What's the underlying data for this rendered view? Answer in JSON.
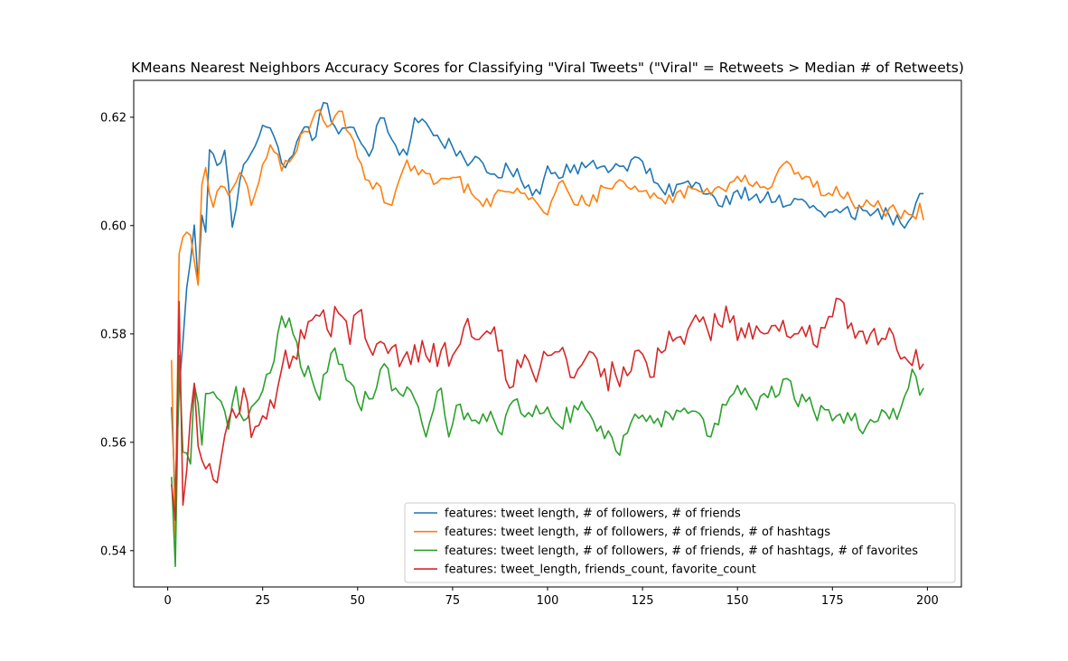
{
  "chart_data": {
    "type": "line",
    "title": "KMeans Nearest Neighbors Accuracy Scores for Classifying \"Viral Tweets\" (\"Viral\" = Retweets > Median # of Retweets)",
    "xlabel": "",
    "ylabel": "",
    "xlim": [
      -8.95,
      208.95
    ],
    "ylim": [
      0.5333,
      0.6268
    ],
    "x_ticks": [
      0,
      25,
      50,
      75,
      100,
      125,
      150,
      175,
      200
    ],
    "y_ticks": [
      0.54,
      0.56,
      0.58,
      0.6,
      0.62
    ],
    "y_tick_labels": [
      "0.54",
      "0.56",
      "0.58",
      "0.60",
      "0.62"
    ],
    "grid": false,
    "legend_position": "lower-right",
    "x_range": [
      1,
      199
    ],
    "series": [
      {
        "name": "features: tweet length, # of followers, # of friends",
        "color": "#1f77b4",
        "anchors": [
          [
            1,
            0.5665
          ],
          [
            2,
            0.5497
          ],
          [
            3,
            0.5698
          ],
          [
            4,
            0.5785
          ],
          [
            5,
            0.5885
          ],
          [
            6,
            0.5935
          ],
          [
            7,
            0.6001
          ],
          [
            8,
            0.5894
          ],
          [
            9,
            0.6019
          ],
          [
            10,
            0.5988
          ],
          [
            11,
            0.614
          ],
          [
            13,
            0.6111
          ],
          [
            15,
            0.6139
          ],
          [
            17,
            0.5997
          ],
          [
            20,
            0.6113
          ],
          [
            25,
            0.6185
          ],
          [
            27,
            0.618
          ],
          [
            30,
            0.6115
          ],
          [
            33,
            0.613
          ],
          [
            36,
            0.6182
          ],
          [
            39,
            0.6164
          ],
          [
            41,
            0.6227
          ],
          [
            44,
            0.6183
          ],
          [
            47,
            0.618
          ],
          [
            50,
            0.6164
          ],
          [
            53,
            0.6128
          ],
          [
            56,
            0.6199
          ],
          [
            60,
            0.6148
          ],
          [
            63,
            0.613
          ],
          [
            65,
            0.6199
          ],
          [
            68,
            0.619
          ],
          [
            70,
            0.6166
          ],
          [
            75,
            0.6145
          ],
          [
            80,
            0.6118
          ],
          [
            85,
            0.6095
          ],
          [
            90,
            0.6102
          ],
          [
            95,
            0.6075
          ],
          [
            98,
            0.6058
          ],
          [
            100,
            0.611
          ],
          [
            103,
            0.6087
          ],
          [
            105,
            0.6113
          ],
          [
            110,
            0.6107
          ],
          [
            115,
            0.611
          ],
          [
            120,
            0.611
          ],
          [
            124,
            0.6125
          ],
          [
            128,
            0.608
          ],
          [
            131,
            0.6057
          ],
          [
            135,
            0.6077
          ],
          [
            138,
            0.607
          ],
          [
            140,
            0.6077
          ],
          [
            143,
            0.606
          ],
          [
            145,
            0.6037
          ],
          [
            150,
            0.6065
          ],
          [
            155,
            0.6058
          ],
          [
            160,
            0.6044
          ],
          [
            163,
            0.6037
          ],
          [
            166,
            0.6048
          ],
          [
            170,
            0.6037
          ],
          [
            173,
            0.6016
          ],
          [
            178,
            0.603
          ],
          [
            180,
            0.6016
          ],
          [
            183,
            0.6028
          ],
          [
            186,
            0.6024
          ],
          [
            190,
            0.6018
          ],
          [
            193,
            0.6004
          ],
          [
            196,
            0.6017
          ],
          [
            198,
            0.6059
          ],
          [
            199,
            0.6059
          ]
        ],
        "noise": 0.0015
      },
      {
        "name": "features: tweet length, # of followers, # of friends, # of hashtags",
        "color": "#ff7f0e",
        "anchors": [
          [
            1,
            0.5752
          ],
          [
            2,
            0.5424
          ],
          [
            3,
            0.5948
          ],
          [
            4,
            0.5979
          ],
          [
            5,
            0.5988
          ],
          [
            6,
            0.5982
          ],
          [
            7,
            0.5934
          ],
          [
            8,
            0.589
          ],
          [
            9,
            0.6076
          ],
          [
            10,
            0.6107
          ],
          [
            12,
            0.6034
          ],
          [
            14,
            0.6073
          ],
          [
            16,
            0.6056
          ],
          [
            18,
            0.608
          ],
          [
            20,
            0.6089
          ],
          [
            22,
            0.6037
          ],
          [
            25,
            0.6113
          ],
          [
            27,
            0.6149
          ],
          [
            30,
            0.6101
          ],
          [
            33,
            0.6127
          ],
          [
            36,
            0.6174
          ],
          [
            39,
            0.6211
          ],
          [
            42,
            0.6182
          ],
          [
            45,
            0.6211
          ],
          [
            48,
            0.6169
          ],
          [
            50,
            0.6125
          ],
          [
            53,
            0.6083
          ],
          [
            56,
            0.6072
          ],
          [
            58,
            0.604
          ],
          [
            60,
            0.6064
          ],
          [
            62,
            0.6104
          ],
          [
            65,
            0.611
          ],
          [
            68,
            0.6096
          ],
          [
            70,
            0.6076
          ],
          [
            73,
            0.6087
          ],
          [
            76,
            0.6089
          ],
          [
            80,
            0.6059
          ],
          [
            85,
            0.6035
          ],
          [
            88,
            0.6064
          ],
          [
            92,
            0.6069
          ],
          [
            95,
            0.6048
          ],
          [
            98,
            0.6034
          ],
          [
            100,
            0.602
          ],
          [
            103,
            0.6079
          ],
          [
            106,
            0.6054
          ],
          [
            110,
            0.604
          ],
          [
            115,
            0.607
          ],
          [
            120,
            0.6081
          ],
          [
            124,
            0.6063
          ],
          [
            128,
            0.606
          ],
          [
            131,
            0.604
          ],
          [
            135,
            0.6065
          ],
          [
            140,
            0.6063
          ],
          [
            145,
            0.6072
          ],
          [
            148,
            0.6079
          ],
          [
            150,
            0.6091
          ],
          [
            155,
            0.6081
          ],
          [
            158,
            0.6067
          ],
          [
            161,
            0.6105
          ],
          [
            164,
            0.6112
          ],
          [
            166,
            0.6098
          ],
          [
            170,
            0.6071
          ],
          [
            174,
            0.606
          ],
          [
            177,
            0.6056
          ],
          [
            180,
            0.6045
          ],
          [
            185,
            0.6039
          ],
          [
            188,
            0.603
          ],
          [
            192,
            0.6024
          ],
          [
            195,
            0.6021
          ],
          [
            197,
            0.6012
          ],
          [
            198,
            0.6041
          ],
          [
            199,
            0.601
          ]
        ],
        "noise": 0.0015
      },
      {
        "name": "features: tweet length, # of followers, # of friends, # of hashtags, # of favorites",
        "color": "#2ca02c",
        "anchors": [
          [
            1,
            0.5536
          ],
          [
            2,
            0.5371
          ],
          [
            3,
            0.576
          ],
          [
            4,
            0.5582
          ],
          [
            5,
            0.558
          ],
          [
            6,
            0.556
          ],
          [
            7,
            0.5706
          ],
          [
            8,
            0.5672
          ],
          [
            9,
            0.5595
          ],
          [
            10,
            0.569
          ],
          [
            12,
            0.5693
          ],
          [
            14,
            0.5676
          ],
          [
            16,
            0.5624
          ],
          [
            18,
            0.5703
          ],
          [
            20,
            0.564
          ],
          [
            22,
            0.5665
          ],
          [
            24,
            0.568
          ],
          [
            26,
            0.5725
          ],
          [
            28,
            0.575
          ],
          [
            30,
            0.5833
          ],
          [
            33,
            0.58
          ],
          [
            35,
            0.5739
          ],
          [
            38,
            0.5715
          ],
          [
            40,
            0.5678
          ],
          [
            42,
            0.573
          ],
          [
            44,
            0.5774
          ],
          [
            47,
            0.5715
          ],
          [
            50,
            0.5674
          ],
          [
            53,
            0.568
          ],
          [
            55,
            0.5701
          ],
          [
            57,
            0.5745
          ],
          [
            60,
            0.57
          ],
          [
            63,
            0.5702
          ],
          [
            66,
            0.5665
          ],
          [
            68,
            0.561
          ],
          [
            70,
            0.566
          ],
          [
            72,
            0.57
          ],
          [
            74,
            0.561
          ],
          [
            76,
            0.5668
          ],
          [
            80,
            0.564
          ],
          [
            85,
            0.5657
          ],
          [
            88,
            0.5614
          ],
          [
            90,
            0.5668
          ],
          [
            95,
            0.5655
          ],
          [
            100,
            0.5665
          ],
          [
            103,
            0.5631
          ],
          [
            108,
            0.566
          ],
          [
            112,
            0.564
          ],
          [
            115,
            0.5607
          ],
          [
            118,
            0.5584
          ],
          [
            121,
            0.5617
          ],
          [
            125,
            0.565
          ],
          [
            128,
            0.5635
          ],
          [
            132,
            0.5653
          ],
          [
            136,
            0.5663
          ],
          [
            140,
            0.5653
          ],
          [
            143,
            0.561
          ],
          [
            146,
            0.567
          ],
          [
            149,
            0.569
          ],
          [
            152,
            0.57
          ],
          [
            155,
            0.566
          ],
          [
            157,
            0.569
          ],
          [
            160,
            0.5683
          ],
          [
            162,
            0.5716
          ],
          [
            165,
            0.568
          ],
          [
            168,
            0.5675
          ],
          [
            171,
            0.564
          ],
          [
            174,
            0.566
          ],
          [
            177,
            0.5652
          ],
          [
            180,
            0.564
          ],
          [
            183,
            0.5616
          ],
          [
            185,
            0.5642
          ],
          [
            188,
            0.566
          ],
          [
            190,
            0.5643
          ],
          [
            193,
            0.5663
          ],
          [
            195,
            0.57
          ],
          [
            196,
            0.5735
          ],
          [
            198,
            0.5687
          ],
          [
            199,
            0.57
          ]
        ],
        "noise": 0.0022
      },
      {
        "name": "features: tweet_length, friends_count, favorite_count",
        "color": "#d62728",
        "anchors": [
          [
            1,
            0.5522
          ],
          [
            2,
            0.5456
          ],
          [
            3,
            0.586
          ],
          [
            4,
            0.5484
          ],
          [
            5,
            0.5548
          ],
          [
            6,
            0.5649
          ],
          [
            7,
            0.5709
          ],
          [
            8,
            0.5593
          ],
          [
            9,
            0.5567
          ],
          [
            10,
            0.5551
          ],
          [
            12,
            0.5531
          ],
          [
            14,
            0.5569
          ],
          [
            16,
            0.564
          ],
          [
            18,
            0.5645
          ],
          [
            20,
            0.57
          ],
          [
            22,
            0.5609
          ],
          [
            25,
            0.5649
          ],
          [
            28,
            0.5663
          ],
          [
            30,
            0.5735
          ],
          [
            33,
            0.5759
          ],
          [
            36,
            0.5791
          ],
          [
            39,
            0.5835
          ],
          [
            42,
            0.5808
          ],
          [
            45,
            0.5838
          ],
          [
            48,
            0.5781
          ],
          [
            50,
            0.584
          ],
          [
            53,
            0.5775
          ],
          [
            56,
            0.5786
          ],
          [
            59,
            0.5775
          ],
          [
            62,
            0.5755
          ],
          [
            65,
            0.578
          ],
          [
            68,
            0.576
          ],
          [
            72,
            0.577
          ],
          [
            75,
            0.576
          ],
          [
            78,
            0.5812
          ],
          [
            81,
            0.579
          ],
          [
            85,
            0.58
          ],
          [
            88,
            0.577
          ],
          [
            90,
            0.57
          ],
          [
            93,
            0.5738
          ],
          [
            96,
            0.573
          ],
          [
            100,
            0.576
          ],
          [
            103,
            0.5767
          ],
          [
            106,
            0.572
          ],
          [
            110,
            0.5755
          ],
          [
            114,
            0.5721
          ],
          [
            118,
            0.5723
          ],
          [
            121,
            0.5723
          ],
          [
            124,
            0.577
          ],
          [
            127,
            0.572
          ],
          [
            130,
            0.5765
          ],
          [
            134,
            0.5793
          ],
          [
            138,
            0.5822
          ],
          [
            142,
            0.581
          ],
          [
            145,
            0.5818
          ],
          [
            147,
            0.5851
          ],
          [
            150,
            0.5788
          ],
          [
            153,
            0.582
          ],
          [
            156,
            0.5804
          ],
          [
            159,
            0.5815
          ],
          [
            162,
            0.5825
          ],
          [
            165,
            0.58
          ],
          [
            168,
            0.5795
          ],
          [
            171,
            0.5775
          ],
          [
            174,
            0.5832
          ],
          [
            177,
            0.5864
          ],
          [
            180,
            0.582
          ],
          [
            183,
            0.5805
          ],
          [
            186,
            0.581
          ],
          [
            189,
            0.579
          ],
          [
            192,
            0.577
          ],
          [
            195,
            0.5749
          ],
          [
            197,
            0.5771
          ],
          [
            199,
            0.5745
          ]
        ],
        "noise": 0.0028
      }
    ]
  }
}
